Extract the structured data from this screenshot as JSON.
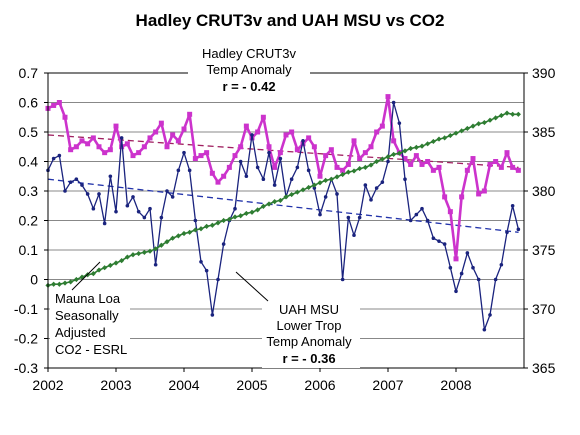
{
  "chart_data": {
    "type": "line",
    "title": "Hadley CRUT3v and UAH MSU vs CO2",
    "x_ticks": [
      "2002",
      "2003",
      "2004",
      "2005",
      "2006",
      "2007",
      "2008"
    ],
    "xlim": [
      2002,
      2009
    ],
    "ylim": [
      -0.3,
      0.7
    ],
    "y2lim": [
      365,
      390
    ],
    "y_ticks": [
      "-0.3",
      "-0.2",
      "-0.1",
      "0",
      "0.1",
      "0.2",
      "0.3",
      "0.4",
      "0.5",
      "0.6",
      "0.7"
    ],
    "y2_ticks": [
      "365",
      "370",
      "375",
      "380",
      "385",
      "390"
    ],
    "grid": true,
    "annotations": {
      "hadley": [
        "Hadley CRUT3v",
        "Temp Anomaly",
        "r = - 0.42"
      ],
      "uah": [
        "UAH MSU",
        "Lower Trop",
        "Temp Anomaly",
        "r = - 0.36"
      ],
      "co2": [
        "Mauna Loa",
        "Seasonally",
        "Adjusted",
        "CO2 - ESRL"
      ]
    },
    "series": [
      {
        "axis": "left",
        "color": "#cc33cc",
        "x": [
          2002.0,
          2002.083,
          2002.167,
          2002.25,
          2002.333,
          2002.417,
          2002.5,
          2002.583,
          2002.667,
          2002.75,
          2002.833,
          2002.917,
          2003.0,
          2003.083,
          2003.167,
          2003.25,
          2003.333,
          2003.417,
          2003.5,
          2003.583,
          2003.667,
          2003.75,
          2003.833,
          2003.917,
          2004.0,
          2004.083,
          2004.167,
          2004.25,
          2004.333,
          2004.417,
          2004.5,
          2004.583,
          2004.667,
          2004.75,
          2004.833,
          2004.917,
          2005.0,
          2005.083,
          2005.167,
          2005.25,
          2005.333,
          2005.417,
          2005.5,
          2005.583,
          2005.667,
          2005.75,
          2005.833,
          2005.917,
          2006.0,
          2006.083,
          2006.167,
          2006.25,
          2006.333,
          2006.417,
          2006.5,
          2006.583,
          2006.667,
          2006.75,
          2006.833,
          2006.917,
          2007.0,
          2007.083,
          2007.167,
          2007.25,
          2007.333,
          2007.417,
          2007.5,
          2007.583,
          2007.667,
          2007.75,
          2007.833,
          2007.917,
          2008.0,
          2008.083,
          2008.167,
          2008.25,
          2008.333,
          2008.417,
          2008.5,
          2008.583,
          2008.667,
          2008.75,
          2008.833,
          2008.917
        ],
        "values": [
          0.58,
          0.59,
          0.6,
          0.55,
          0.44,
          0.45,
          0.47,
          0.46,
          0.48,
          0.45,
          0.43,
          0.44,
          0.52,
          0.45,
          0.46,
          0.42,
          0.43,
          0.45,
          0.48,
          0.5,
          0.53,
          0.45,
          0.49,
          0.47,
          0.51,
          0.56,
          0.41,
          0.42,
          0.43,
          0.36,
          0.33,
          0.35,
          0.38,
          0.42,
          0.45,
          0.52,
          0.48,
          0.5,
          0.55,
          0.45,
          0.38,
          0.43,
          0.49,
          0.5,
          0.44,
          0.46,
          0.48,
          0.45,
          0.35,
          0.42,
          0.44,
          0.38,
          0.37,
          0.39,
          0.47,
          0.41,
          0.43,
          0.45,
          0.5,
          0.52,
          0.62,
          0.47,
          0.43,
          0.41,
          0.39,
          0.42,
          0.39,
          0.4,
          0.37,
          0.38,
          0.28,
          0.23,
          0.07,
          0.28,
          0.37,
          0.41,
          0.29,
          0.3,
          0.39,
          0.4,
          0.38,
          0.43,
          0.38,
          0.37
        ]
      },
      {
        "axis": "left",
        "color": "#1a237e",
        "x": [
          2002.0,
          2002.083,
          2002.167,
          2002.25,
          2002.333,
          2002.417,
          2002.5,
          2002.583,
          2002.667,
          2002.75,
          2002.833,
          2002.917,
          2003.0,
          2003.083,
          2003.167,
          2003.25,
          2003.333,
          2003.417,
          2003.5,
          2003.583,
          2003.667,
          2003.75,
          2003.833,
          2003.917,
          2004.0,
          2004.083,
          2004.167,
          2004.25,
          2004.333,
          2004.417,
          2004.5,
          2004.583,
          2004.667,
          2004.75,
          2004.833,
          2004.917,
          2005.0,
          2005.083,
          2005.167,
          2005.25,
          2005.333,
          2005.417,
          2005.5,
          2005.583,
          2005.667,
          2005.75,
          2005.833,
          2005.917,
          2006.0,
          2006.083,
          2006.167,
          2006.25,
          2006.333,
          2006.417,
          2006.5,
          2006.583,
          2006.667,
          2006.75,
          2006.833,
          2006.917,
          2007.0,
          2007.083,
          2007.167,
          2007.25,
          2007.333,
          2007.417,
          2007.5,
          2007.583,
          2007.667,
          2007.75,
          2007.833,
          2007.917,
          2008.0,
          2008.083,
          2008.167,
          2008.25,
          2008.333,
          2008.417,
          2008.5,
          2008.583,
          2008.667,
          2008.75,
          2008.833,
          2008.917
        ],
        "values": [
          0.37,
          0.41,
          0.42,
          0.3,
          0.33,
          0.34,
          0.32,
          0.29,
          0.24,
          0.29,
          0.19,
          0.35,
          0.23,
          0.48,
          0.25,
          0.28,
          0.23,
          0.21,
          0.24,
          0.05,
          0.21,
          0.3,
          0.28,
          0.37,
          0.43,
          0.37,
          0.2,
          0.06,
          0.03,
          -0.12,
          0.0,
          0.12,
          0.2,
          0.24,
          0.4,
          0.35,
          0.49,
          0.38,
          0.34,
          0.43,
          0.32,
          0.41,
          0.28,
          0.34,
          0.38,
          0.47,
          0.37,
          0.31,
          0.22,
          0.28,
          0.34,
          0.29,
          0.0,
          0.21,
          0.15,
          0.21,
          0.32,
          0.27,
          0.31,
          0.33,
          0.4,
          0.6,
          0.53,
          0.34,
          0.2,
          0.22,
          0.24,
          0.2,
          0.14,
          0.13,
          0.12,
          0.04,
          -0.04,
          0.02,
          0.09,
          0.04,
          0.0,
          -0.17,
          -0.12,
          0.0,
          0.05,
          0.16,
          0.25,
          0.17
        ]
      },
      {
        "axis": "right",
        "color": "#2e7d32",
        "x": [
          2002.0,
          2002.083,
          2002.167,
          2002.25,
          2002.333,
          2002.417,
          2002.5,
          2002.583,
          2002.667,
          2002.75,
          2002.833,
          2002.917,
          2003.0,
          2003.083,
          2003.167,
          2003.25,
          2003.333,
          2003.417,
          2003.5,
          2003.583,
          2003.667,
          2003.75,
          2003.833,
          2003.917,
          2004.0,
          2004.083,
          2004.167,
          2004.25,
          2004.333,
          2004.417,
          2004.5,
          2004.583,
          2004.667,
          2004.75,
          2004.833,
          2004.917,
          2005.0,
          2005.083,
          2005.167,
          2005.25,
          2005.333,
          2005.417,
          2005.5,
          2005.583,
          2005.667,
          2005.75,
          2005.833,
          2005.917,
          2006.0,
          2006.083,
          2006.167,
          2006.25,
          2006.333,
          2006.417,
          2006.5,
          2006.583,
          2006.667,
          2006.75,
          2006.833,
          2006.917,
          2007.0,
          2007.083,
          2007.167,
          2007.25,
          2007.333,
          2007.417,
          2007.5,
          2007.583,
          2007.667,
          2007.75,
          2007.833,
          2007.917,
          2008.0,
          2008.083,
          2008.167,
          2008.25,
          2008.333,
          2008.417,
          2008.5,
          2008.583,
          2008.667,
          2008.75,
          2008.833,
          2008.917
        ],
        "values": [
          372.0,
          372.1,
          372.1,
          372.2,
          372.3,
          372.5,
          372.7,
          372.9,
          373.0,
          373.3,
          373.5,
          373.7,
          373.9,
          374.1,
          374.4,
          374.6,
          374.7,
          374.8,
          374.9,
          375.1,
          375.4,
          375.7,
          376.0,
          376.2,
          376.4,
          376.5,
          376.7,
          376.8,
          377.0,
          377.1,
          377.3,
          377.5,
          377.6,
          377.8,
          377.9,
          378.1,
          378.2,
          378.4,
          378.7,
          378.9,
          379.1,
          379.2,
          379.5,
          379.7,
          379.9,
          380.1,
          380.3,
          380.5,
          380.7,
          380.9,
          381.0,
          381.2,
          381.4,
          381.6,
          381.7,
          381.9,
          382.0,
          382.2,
          382.5,
          382.7,
          382.9,
          383.1,
          383.2,
          383.4,
          383.6,
          383.7,
          383.8,
          384.0,
          384.2,
          384.4,
          384.5,
          384.7,
          384.9,
          385.1,
          385.3,
          385.5,
          385.7,
          385.8,
          386.0,
          386.2,
          386.4,
          386.6,
          386.5,
          386.5
        ]
      }
    ],
    "trendlines": [
      {
        "color": "#a02060",
        "x": [
          2002,
          2008.92
        ],
        "y": [
          0.49,
          0.38
        ]
      },
      {
        "color": "#2233aa",
        "x": [
          2002,
          2008.92
        ],
        "y": [
          0.34,
          0.16
        ]
      }
    ]
  }
}
